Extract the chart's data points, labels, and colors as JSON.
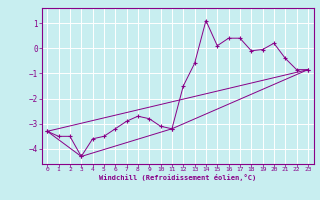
{
  "xlabel": "Windchill (Refroidissement éolien,°C)",
  "bg_color": "#c8eef0",
  "line_color": "#880088",
  "grid_color": "#ffffff",
  "xlim": [
    -0.5,
    23.5
  ],
  "ylim": [
    -4.6,
    1.6
  ],
  "yticks": [
    1,
    0,
    -1,
    -2,
    -3,
    -4
  ],
  "xticks": [
    0,
    1,
    2,
    3,
    4,
    5,
    6,
    7,
    8,
    9,
    10,
    11,
    12,
    13,
    14,
    15,
    16,
    17,
    18,
    19,
    20,
    21,
    22,
    23
  ],
  "line1_x": [
    0,
    1,
    2,
    3,
    4,
    5,
    6,
    7,
    8,
    9,
    10,
    11,
    12,
    13,
    14,
    15,
    16,
    17,
    18,
    19,
    20,
    21,
    22,
    23
  ],
  "line1_y": [
    -3.3,
    -3.5,
    -3.5,
    -4.3,
    -3.6,
    -3.5,
    -3.2,
    -2.9,
    -2.7,
    -2.8,
    -3.1,
    -3.2,
    -1.5,
    -0.6,
    1.1,
    0.1,
    0.4,
    0.4,
    -0.1,
    -0.05,
    0.2,
    -0.4,
    -0.85,
    -0.85
  ],
  "line2_x": [
    0,
    3,
    11,
    23
  ],
  "line2_y": [
    -3.3,
    -4.3,
    -3.2,
    -0.85
  ],
  "line3_x": [
    0,
    23
  ],
  "line3_y": [
    -3.3,
    -0.85
  ]
}
